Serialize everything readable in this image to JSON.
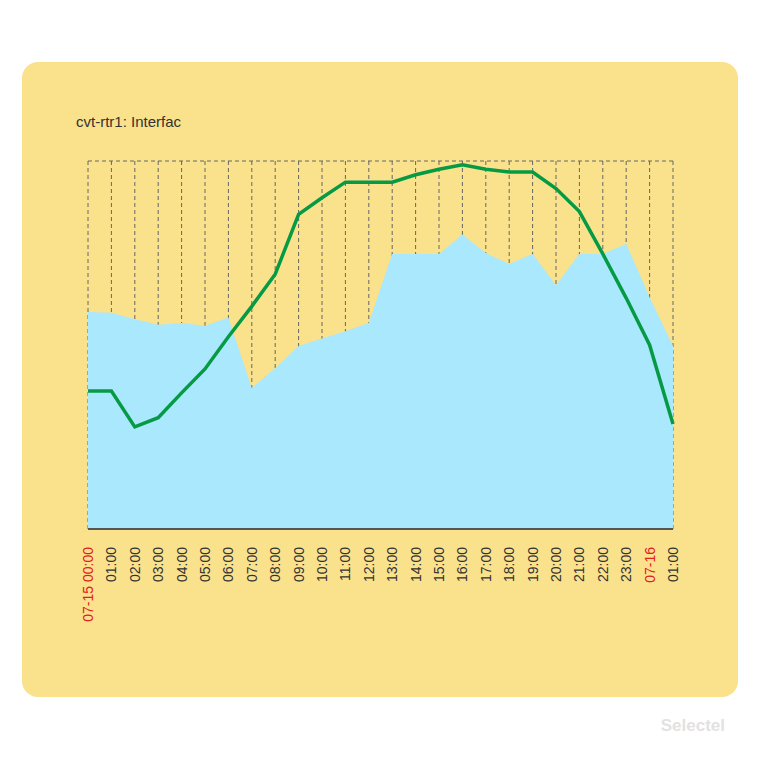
{
  "chart_data": {
    "type": "line",
    "title": "cvt-rtr1: Interfac",
    "annotations": [
      "Selectel"
    ],
    "categories": [
      "07-15 00:00",
      "01:00",
      "02:00",
      "03:00",
      "04:00",
      "05:00",
      "06:00",
      "07:00",
      "08:00",
      "09:00",
      "10:00",
      "11:00",
      "12:00",
      "13:00",
      "14:00",
      "15:00",
      "16:00",
      "17:00",
      "18:00",
      "19:00",
      "20:00",
      "21:00",
      "22:00",
      "23:00",
      "07-16",
      "01:00"
    ],
    "series": [
      {
        "type": "area",
        "color": "#a9e8fd",
        "values": [
          2.36,
          2.35,
          2.28,
          2.22,
          2.24,
          2.21,
          2.3,
          1.53,
          1.75,
          1.99,
          2.07,
          2.15,
          2.24,
          2.99,
          2.99,
          2.99,
          3.2,
          3.0,
          2.88,
          2.99,
          2.65,
          2.99,
          2.99,
          3.1,
          2.52,
          1.99
        ]
      },
      {
        "type": "line",
        "color": "#069a45",
        "values": [
          1.5,
          1.5,
          1.11,
          1.21,
          1.48,
          1.74,
          2.09,
          2.42,
          2.77,
          3.42,
          3.6,
          3.77,
          3.77,
          3.77,
          3.85,
          3.91,
          3.96,
          3.91,
          3.88,
          3.88,
          3.7,
          3.45,
          2.99,
          2.51,
          2.0,
          1.14
        ]
      }
    ],
    "ylim": [
      0,
      4
    ],
    "yticks": [
      0,
      1,
      2,
      3,
      4
    ],
    "grid": true,
    "tick_labels": "x"
  }
}
